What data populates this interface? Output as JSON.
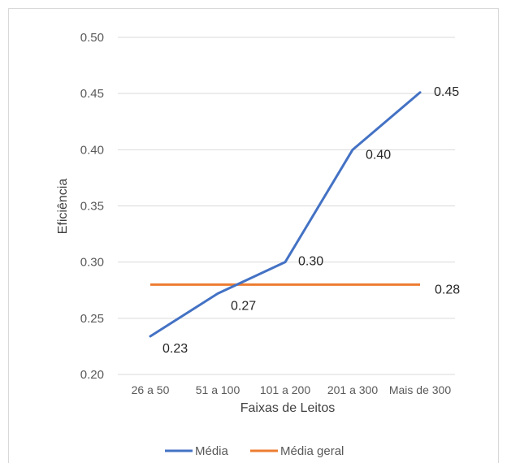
{
  "chart_data": {
    "type": "line",
    "title": "",
    "xlabel": "Faixas de Leitos",
    "ylabel": "Eficiência",
    "categories": [
      "26 a 50",
      "51 a 100",
      "101 a 200",
      "201 a 300",
      "Mais de 300"
    ],
    "ylim": [
      0.2,
      0.5
    ],
    "yticks": [
      "0.20",
      "0.25",
      "0.30",
      "0.35",
      "0.40",
      "0.45",
      "0.50"
    ],
    "grid": true,
    "legend_position": "bottom",
    "series": [
      {
        "name": "Média",
        "color": "#4472C4",
        "values": [
          0.234,
          0.272,
          0.3,
          0.4,
          0.451
        ],
        "labels": [
          "0.23",
          "0.27",
          "0.30",
          "0.40",
          "0.45"
        ]
      },
      {
        "name": "Média geral",
        "color": "#ED7D31",
        "values": [
          0.28,
          0.28,
          0.28,
          0.28,
          0.28
        ],
        "labels": [
          "",
          "",
          "",
          "",
          "0.28"
        ]
      }
    ]
  }
}
